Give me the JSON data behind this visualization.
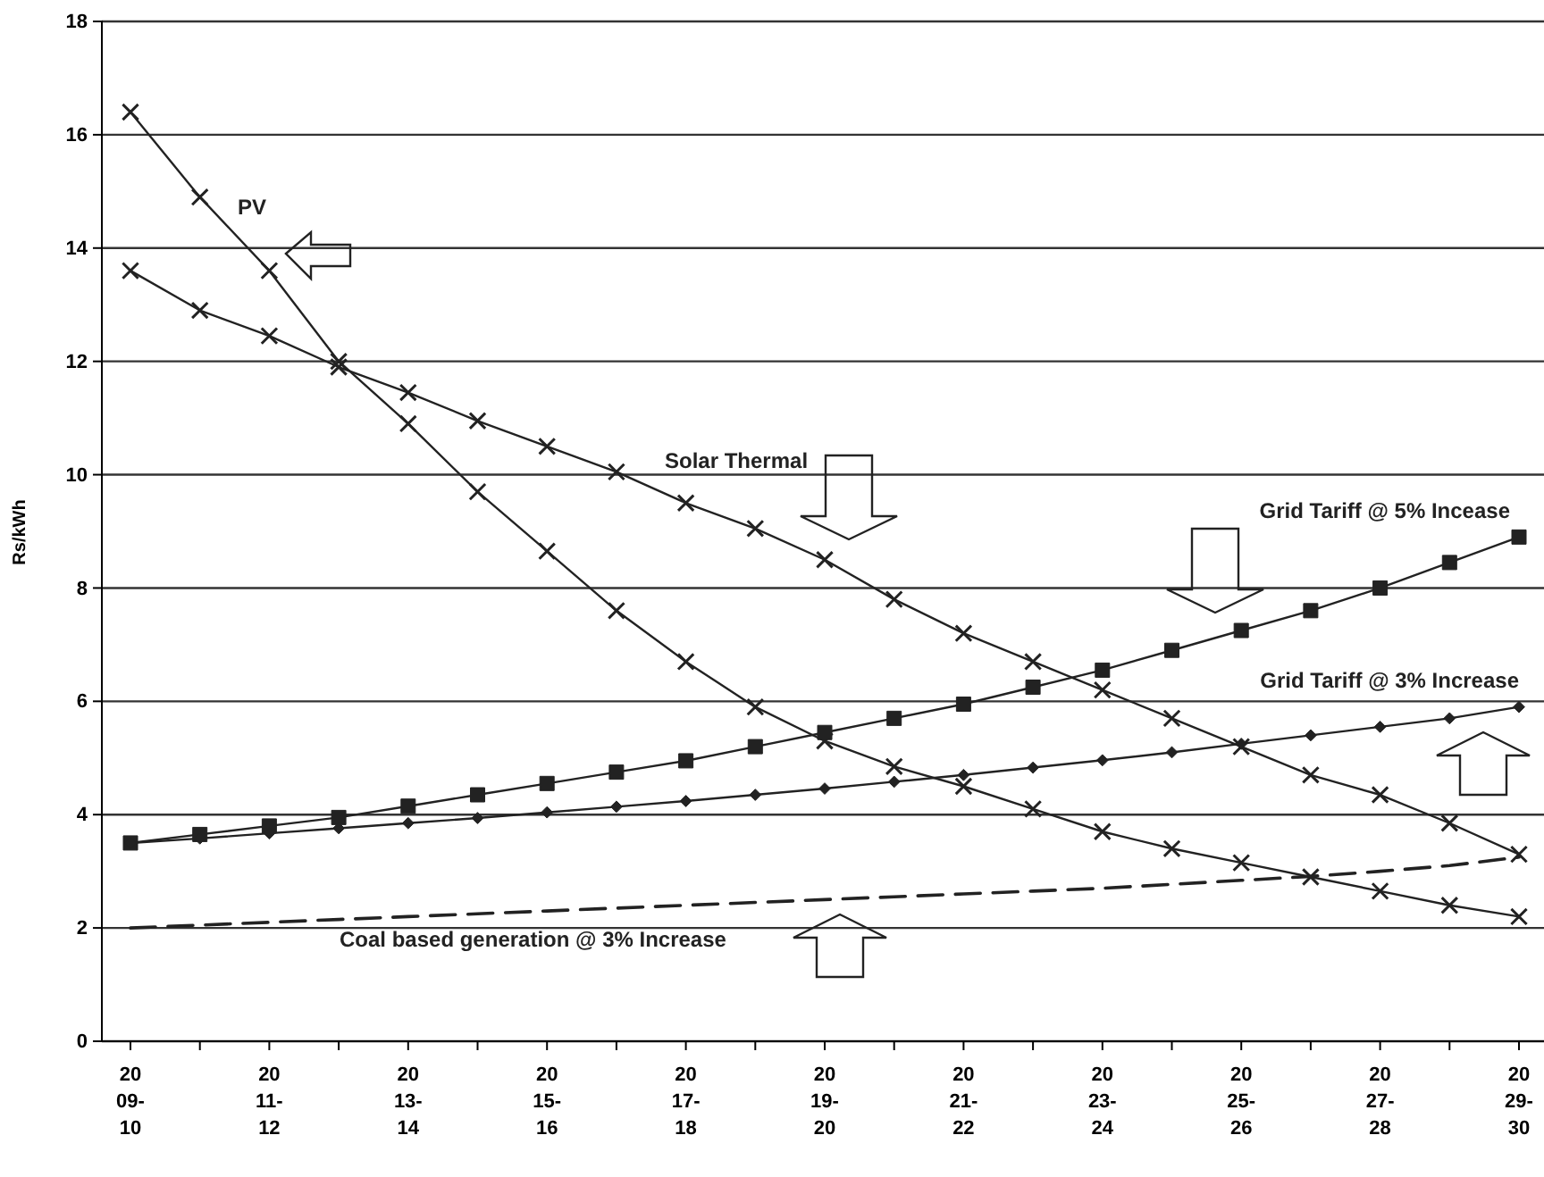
{
  "chart_data": {
    "type": "line",
    "ylabel": "Rs/kWh",
    "categories": [
      "2009-10",
      null,
      "2011-12",
      null,
      "2013-14",
      null,
      "2015-16",
      null,
      "2017-18",
      null,
      "2019-20",
      null,
      "2021-22",
      null,
      "2023-24",
      null,
      "2025-26",
      null,
      "2027-28",
      null,
      "2029-30"
    ],
    "series": [
      {
        "name": "PV",
        "color": "#222222",
        "marker": "cross",
        "values": [
          16.4,
          14.9,
          13.6,
          12.0,
          10.9,
          9.7,
          8.65,
          7.6,
          6.7,
          5.9,
          5.3,
          4.85,
          4.5,
          4.1,
          3.7,
          3.4,
          3.15,
          2.9,
          2.65,
          2.4,
          2.2
        ]
      },
      {
        "name": "Solar Thermal",
        "color": "#222222",
        "marker": "cross",
        "values": [
          13.6,
          12.9,
          12.45,
          11.9,
          11.45,
          10.95,
          10.5,
          10.05,
          9.5,
          9.05,
          8.5,
          7.8,
          7.2,
          6.7,
          6.2,
          5.7,
          5.2,
          4.7,
          4.35,
          3.85,
          3.3
        ]
      },
      {
        "name": "Grid Tariff @ 5% Incease",
        "color": "#222222",
        "marker": "square",
        "values": [
          3.5,
          3.65,
          3.8,
          3.95,
          4.15,
          4.35,
          4.55,
          4.75,
          4.95,
          5.2,
          5.45,
          5.7,
          5.95,
          6.25,
          6.55,
          6.9,
          7.25,
          7.6,
          8.0,
          8.45,
          8.9
        ]
      },
      {
        "name": "Grid Tariff @ 3% Increase",
        "color": "#222222",
        "marker": "diamond",
        "values": [
          3.5,
          3.58,
          3.67,
          3.76,
          3.85,
          3.94,
          4.04,
          4.14,
          4.24,
          4.35,
          4.46,
          4.58,
          4.7,
          4.83,
          4.96,
          5.1,
          5.25,
          5.4,
          5.55,
          5.7,
          5.9
        ]
      },
      {
        "name": "Coal based generation @ 3% Increase",
        "color": "#222222",
        "marker": "none",
        "line_style": "dashed",
        "values": [
          2.0,
          2.05,
          2.1,
          2.15,
          2.2,
          2.25,
          2.3,
          2.35,
          2.4,
          2.45,
          2.5,
          2.55,
          2.6,
          2.65,
          2.7,
          2.77,
          2.84,
          2.91,
          3.0,
          3.1,
          3.25
        ]
      }
    ],
    "ylim": [
      0,
      18
    ],
    "yticks": [
      0,
      2,
      4,
      6,
      8,
      10,
      12,
      14,
      16,
      18
    ],
    "grid": "y"
  }
}
